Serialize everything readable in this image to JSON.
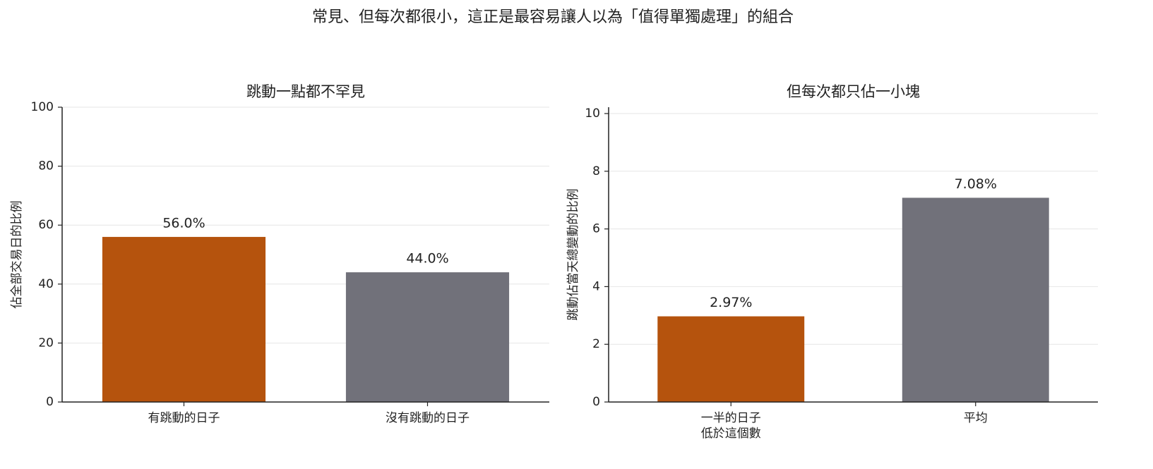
{
  "title": "常見、但每次都很小，這正是最容易讓人以為「值得單獨處理」的組合",
  "chart_data": [
    {
      "type": "bar",
      "title": "跳動一點都不罕見",
      "ylabel": "佔全部交易日的比例",
      "categories": [
        "有跳動的日子",
        "沒有跳動的日子"
      ],
      "values": [
        56.0,
        44.0
      ],
      "value_labels": [
        "56.0%",
        "44.0%"
      ],
      "colors": [
        "#b5530d",
        "#71717a"
      ],
      "ylim": [
        0,
        100
      ],
      "yticks": [
        0,
        20,
        40,
        60,
        80,
        100
      ],
      "grid": true
    },
    {
      "type": "bar",
      "title": "但每次都只佔一小塊",
      "ylabel": "跳動佔當天總變動的比例",
      "categories": [
        "一半的日子\n低於這個數",
        "平均"
      ],
      "values": [
        2.97,
        7.08
      ],
      "value_labels": [
        "2.97%",
        "7.08%"
      ],
      "colors": [
        "#b5530d",
        "#71717a"
      ],
      "ylim": [
        0,
        10.22
      ],
      "yticks": [
        0,
        2,
        4,
        6,
        8,
        10
      ],
      "grid": true
    }
  ]
}
